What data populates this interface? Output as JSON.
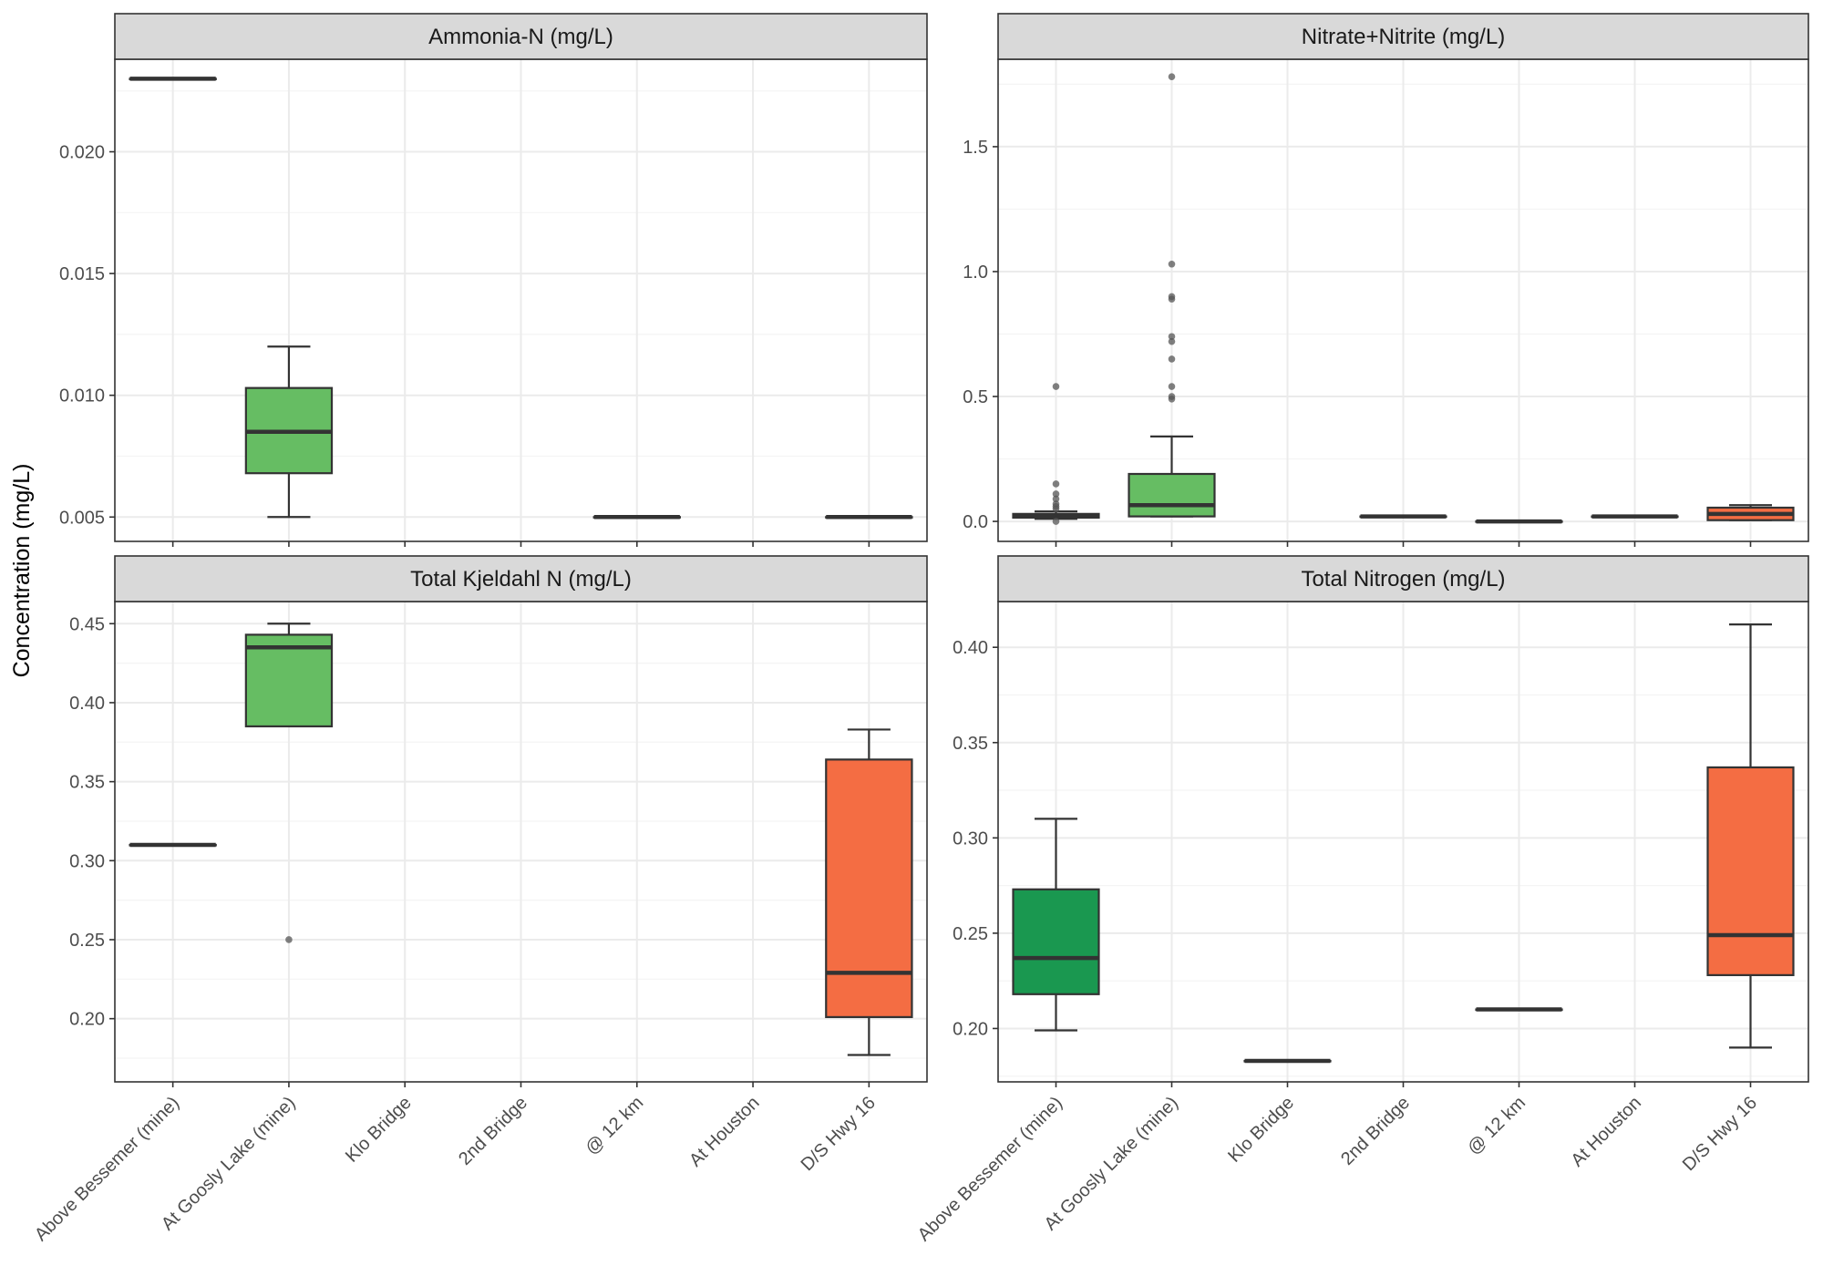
{
  "ylabel": "Concentration (mg/L)",
  "colors": {
    "panel_border": "#333333",
    "strip_fill": "#d9d9d9",
    "grid_major": "#ebebeb",
    "grid_minor": "#f4f4f4",
    "box_line": "#333333",
    "outlier": "#555555",
    "Above Bessemer (mine)": "#1a9850",
    "At Goosly Lake (mine)": "#66bd63",
    "D/S Hwy 16": "#f46d43"
  },
  "chart_data": [
    {
      "type": "box",
      "title": "Ammonia-N (mg/L)",
      "categories": [
        "Above Bessemer (mine)",
        "At Goosly Lake (mine)",
        "Klo Bridge",
        "2nd Bridge",
        "@ 12 km",
        "At Houston",
        "D/S Hwy 16"
      ],
      "ylim": [
        0.004,
        0.0238
      ],
      "yticks": [
        0.005,
        0.01,
        0.015,
        0.02
      ],
      "ytick_labels": [
        "0.005",
        "0.010",
        "0.015",
        "0.020"
      ],
      "boxes": [
        {
          "category": "Above Bessemer (mine)",
          "min": 0.023,
          "q1": 0.023,
          "median": 0.023,
          "q3": 0.023,
          "max": 0.023,
          "outliers": []
        },
        {
          "category": "At Goosly Lake (mine)",
          "min": 0.005,
          "q1": 0.0068,
          "median": 0.0085,
          "q3": 0.0103,
          "max": 0.012,
          "outliers": []
        },
        {
          "category": "@ 12 km",
          "min": 0.005,
          "q1": 0.005,
          "median": 0.005,
          "q3": 0.005,
          "max": 0.005,
          "outliers": []
        },
        {
          "category": "D/S Hwy 16",
          "min": 0.005,
          "q1": 0.005,
          "median": 0.005,
          "q3": 0.005,
          "max": 0.005,
          "outliers": []
        }
      ]
    },
    {
      "type": "box",
      "title": "Nitrate+Nitrite (mg/L)",
      "categories": [
        "Above Bessemer (mine)",
        "At Goosly Lake (mine)",
        "Klo Bridge",
        "2nd Bridge",
        "@ 12 km",
        "At Houston",
        "D/S Hwy 16"
      ],
      "ylim": [
        -0.08,
        1.85
      ],
      "yticks": [
        0.0,
        0.5,
        1.0,
        1.5
      ],
      "ytick_labels": [
        "0.0",
        "0.5",
        "1.0",
        "1.5"
      ],
      "boxes": [
        {
          "category": "Above Bessemer (mine)",
          "min": 0.01,
          "q1": 0.015,
          "median": 0.025,
          "q3": 0.03,
          "max": 0.04,
          "outliers": [
            0.54,
            0.15,
            0.11,
            0.09,
            0.07,
            0.06,
            0.05,
            0.0
          ]
        },
        {
          "category": "At Goosly Lake (mine)",
          "min": 0.02,
          "q1": 0.02,
          "median": 0.065,
          "q3": 0.19,
          "max": 0.34,
          "outliers": [
            1.78,
            1.03,
            0.9,
            0.89,
            0.74,
            0.72,
            0.65,
            0.54,
            0.5,
            0.49
          ]
        },
        {
          "category": "2nd Bridge",
          "min": 0.02,
          "q1": 0.02,
          "median": 0.02,
          "q3": 0.02,
          "max": 0.02,
          "outliers": []
        },
        {
          "category": "@ 12 km",
          "min": 0.0,
          "q1": 0.0,
          "median": 0.0,
          "q3": 0.0,
          "max": 0.0,
          "outliers": []
        },
        {
          "category": "At Houston",
          "min": 0.02,
          "q1": 0.02,
          "median": 0.02,
          "q3": 0.02,
          "max": 0.02,
          "outliers": []
        },
        {
          "category": "D/S Hwy 16",
          "min": 0.005,
          "q1": 0.005,
          "median": 0.03,
          "q3": 0.055,
          "max": 0.065,
          "outliers": []
        }
      ]
    },
    {
      "type": "box",
      "title": "Total Kjeldahl N (mg/L)",
      "categories": [
        "Above Bessemer (mine)",
        "At Goosly Lake (mine)",
        "Klo Bridge",
        "2nd Bridge",
        "@ 12 km",
        "At Houston",
        "D/S Hwy 16"
      ],
      "ylim": [
        0.16,
        0.464
      ],
      "yticks": [
        0.2,
        0.25,
        0.3,
        0.35,
        0.4,
        0.45
      ],
      "ytick_labels": [
        "0.20",
        "0.25",
        "0.30",
        "0.35",
        "0.40",
        "0.45"
      ],
      "boxes": [
        {
          "category": "Above Bessemer (mine)",
          "min": 0.31,
          "q1": 0.31,
          "median": 0.31,
          "q3": 0.31,
          "max": 0.31,
          "outliers": []
        },
        {
          "category": "At Goosly Lake (mine)",
          "min": 0.385,
          "q1": 0.385,
          "median": 0.435,
          "q3": 0.443,
          "max": 0.45,
          "outliers": [
            0.25
          ]
        },
        {
          "category": "D/S Hwy 16",
          "min": 0.177,
          "q1": 0.201,
          "median": 0.229,
          "q3": 0.364,
          "max": 0.383,
          "outliers": []
        }
      ]
    },
    {
      "type": "box",
      "title": "Total Nitrogen (mg/L)",
      "categories": [
        "Above Bessemer (mine)",
        "At Goosly Lake (mine)",
        "Klo Bridge",
        "2nd Bridge",
        "@ 12 km",
        "At Houston",
        "D/S Hwy 16"
      ],
      "ylim": [
        0.172,
        0.424
      ],
      "yticks": [
        0.2,
        0.25,
        0.3,
        0.35,
        0.4
      ],
      "ytick_labels": [
        "0.20",
        "0.25",
        "0.30",
        "0.35",
        "0.40"
      ],
      "boxes": [
        {
          "category": "Above Bessemer (mine)",
          "min": 0.199,
          "q1": 0.218,
          "median": 0.237,
          "q3": 0.273,
          "max": 0.31,
          "outliers": []
        },
        {
          "category": "Klo Bridge",
          "min": 0.183,
          "q1": 0.183,
          "median": 0.183,
          "q3": 0.183,
          "max": 0.183,
          "outliers": []
        },
        {
          "category": "@ 12 km",
          "min": 0.21,
          "q1": 0.21,
          "median": 0.21,
          "q3": 0.21,
          "max": 0.21,
          "outliers": []
        },
        {
          "category": "D/S Hwy 16",
          "min": 0.19,
          "q1": 0.228,
          "median": 0.249,
          "q3": 0.337,
          "max": 0.412,
          "outliers": []
        }
      ]
    }
  ]
}
